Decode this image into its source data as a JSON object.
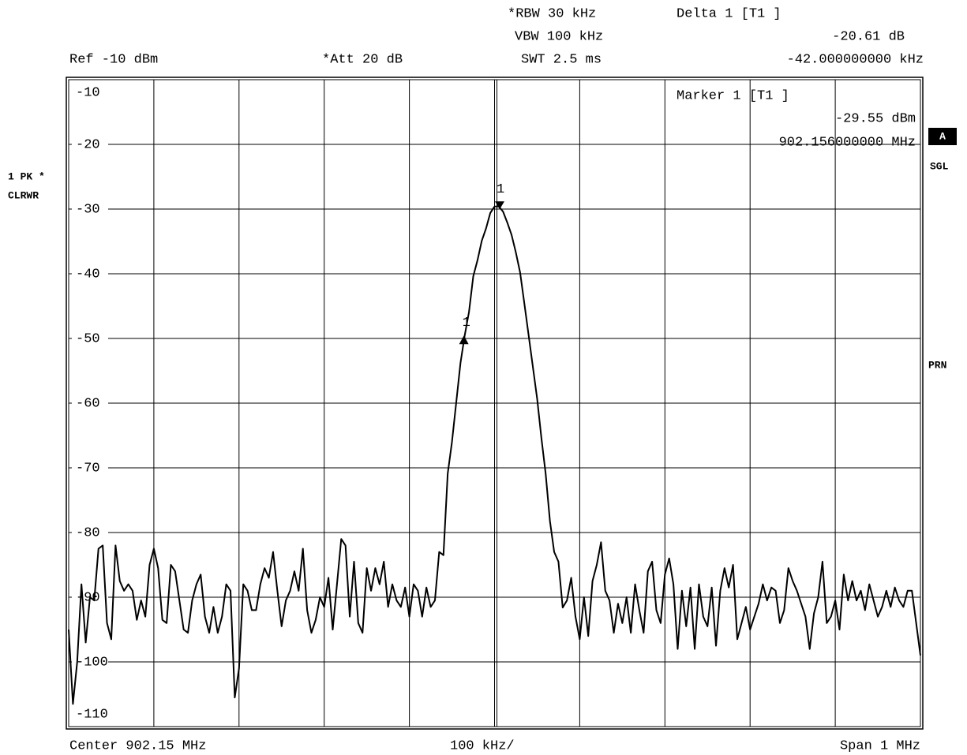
{
  "chart_data": {
    "type": "line",
    "annotations": {
      "rbw": "*RBW 30 kHz",
      "vbw": "VBW 100 kHz",
      "swt": "SWT 2.5 ms",
      "delta": "Delta 1 [T1 ]",
      "delta_level": "-20.61 dB",
      "delta_freq": "-42.000000000 kHz",
      "ref": "Ref -10 dBm",
      "att": "*Att 20 dB",
      "marker": "Marker 1 [T1 ]",
      "marker_level": "-29.55 dBm",
      "marker_freq": "902.156000000 MHz",
      "trace": "1 PK *",
      "trace_mode": "CLRWR",
      "side_a": "A",
      "side_sgl": "SGL",
      "side_prn": "PRN",
      "center": "Center 902.15 MHz",
      "div": "100 kHz/",
      "span": "Span 1 MHz"
    },
    "xlim": [
      901.65,
      902.65
    ],
    "xticks": [
      901.65,
      901.75,
      901.85,
      901.95,
      902.05,
      902.15,
      902.25,
      902.35,
      902.45,
      902.55,
      902.65
    ],
    "ylim": [
      -110,
      -10
    ],
    "yticks": [
      -10,
      -20,
      -30,
      -40,
      -50,
      -60,
      -70,
      -80,
      -90,
      -100,
      -110
    ],
    "grid": true,
    "markers": [
      {
        "label": "1",
        "x": 902.156,
        "y": -29.55,
        "shape": "down"
      },
      {
        "label": "1",
        "x": 902.114,
        "y": -50.16,
        "shape": "up"
      }
    ],
    "x": [
      901.65,
      901.655,
      901.66,
      901.665,
      901.67,
      901.675,
      901.68,
      901.685,
      901.69,
      901.695,
      901.7,
      901.705,
      901.71,
      901.715,
      901.72,
      901.725,
      901.73,
      901.735,
      901.74,
      901.745,
      901.75,
      901.755,
      901.76,
      901.765,
      901.77,
      901.775,
      901.78,
      901.785,
      901.79,
      901.795,
      901.8,
      901.805,
      901.81,
      901.815,
      901.82,
      901.825,
      901.83,
      901.835,
      901.84,
      901.845,
      901.85,
      901.855,
      901.86,
      901.865,
      901.87,
      901.875,
      901.88,
      901.885,
      901.89,
      901.895,
      901.9,
      901.905,
      901.91,
      901.915,
      901.92,
      901.925,
      901.93,
      901.935,
      901.94,
      901.945,
      901.95,
      901.955,
      901.96,
      901.965,
      901.97,
      901.975,
      901.98,
      901.985,
      901.99,
      901.995,
      902,
      902.005,
      902.01,
      902.015,
      902.02,
      902.025,
      902.03,
      902.035,
      902.04,
      902.045,
      902.05,
      902.055,
      902.06,
      902.065,
      902.07,
      902.075,
      902.08,
      902.085,
      902.09,
      902.095,
      902.1,
      902.105,
      902.11,
      902.115,
      902.12,
      902.125,
      902.13,
      902.135,
      902.14,
      902.145,
      902.15,
      902.155,
      902.16,
      902.165,
      902.17,
      902.175,
      902.18,
      902.185,
      902.19,
      902.195,
      902.2,
      902.205,
      902.21,
      902.215,
      902.22,
      902.225,
      902.23,
      902.235,
      902.24,
      902.245,
      902.25,
      902.255,
      902.26,
      902.265,
      902.27,
      902.275,
      902.28,
      902.285,
      902.29,
      902.295,
      902.3,
      902.305,
      902.31,
      902.315,
      902.32,
      902.325,
      902.33,
      902.335,
      902.34,
      902.345,
      902.35,
      902.355,
      902.36,
      902.365,
      902.37,
      902.375,
      902.38,
      902.385,
      902.39,
      902.395,
      902.4,
      902.405,
      902.41,
      902.415,
      902.42,
      902.425,
      902.43,
      902.435,
      902.44,
      902.445,
      902.45,
      902.455,
      902.46,
      902.465,
      902.47,
      902.475,
      902.48,
      902.485,
      902.49,
      902.495,
      902.5,
      902.505,
      902.51,
      902.515,
      902.52,
      902.525,
      902.53,
      902.535,
      902.54,
      902.545,
      902.55,
      902.555,
      902.56,
      902.565,
      902.57,
      902.575,
      902.58,
      902.585,
      902.59,
      902.595,
      902.6,
      902.605,
      902.61,
      902.615,
      902.62,
      902.625,
      902.63,
      902.635,
      902.64,
      902.645,
      902.65
    ],
    "series": [
      {
        "color": "#000000",
        "values": [
          -95,
          -106.5,
          -100,
          -88,
          -97,
          -90,
          -90.5,
          -82.5,
          -82,
          -94,
          -96.5,
          -82,
          -87.5,
          -89,
          -88,
          -89,
          -93.5,
          -90.5,
          -93,
          -85,
          -82.5,
          -85.5,
          -93.5,
          -94,
          -85,
          -86,
          -90.5,
          -95,
          -95.5,
          -90.5,
          -88,
          -86.5,
          -93,
          -95.5,
          -91.5,
          -95.5,
          -93,
          -88,
          -89,
          -105.5,
          -101,
          -88,
          -89,
          -92,
          -92,
          -88,
          -85.5,
          -87,
          -83,
          -89,
          -94.5,
          -90.5,
          -89,
          -86,
          -89,
          -82.5,
          -92,
          -95.5,
          -93.5,
          -90,
          -91.5,
          -87,
          -95,
          -88,
          -81,
          -82,
          -93,
          -84.5,
          -94,
          -95.5,
          -85.5,
          -89,
          -85.5,
          -88,
          -84.5,
          -91.5,
          -88,
          -90.5,
          -91.5,
          -88.5,
          -93,
          -88,
          -89,
          -93,
          -88.5,
          -91.5,
          -90.5,
          -83,
          -83.5,
          -70.9,
          -66,
          -59.9,
          -53.8,
          -49.5,
          -45.9,
          -40.4,
          -37.9,
          -34.9,
          -33,
          -30.6,
          -29.6,
          -29.6,
          -30.4,
          -32.1,
          -34,
          -36.7,
          -39.8,
          -44.6,
          -49.5,
          -54.4,
          -59.3,
          -65.4,
          -70.9,
          -78.2,
          -83,
          -84.5,
          -91.6,
          -90.5,
          -87,
          -93,
          -96.5,
          -90,
          -96,
          -87.5,
          -85,
          -81.5,
          -89,
          -90.5,
          -95.5,
          -91,
          -94,
          -90,
          -95.5,
          -88,
          -92,
          -95.5,
          -86,
          -84.5,
          -92,
          -94,
          -86.5,
          -84,
          -88,
          -98,
          -89,
          -94.5,
          -88.5,
          -98,
          -88,
          -93,
          -94.5,
          -88.5,
          -97.5,
          -89,
          -85.5,
          -88.5,
          -85,
          -96.5,
          -94,
          -91.5,
          -95,
          -93,
          -91,
          -88,
          -90.5,
          -88.5,
          -89,
          -94,
          -92,
          -85.5,
          -87.5,
          -89,
          -91,
          -93,
          -98,
          -92.5,
          -90,
          -84.5,
          -94,
          -93,
          -90.5,
          -95,
          -86.5,
          -90.5,
          -87.5,
          -90.5,
          -89,
          -92,
          -88,
          -90.5,
          -93,
          -91.5,
          -89,
          -91.5,
          -88.5,
          -90.5,
          -91.5,
          -89,
          -89,
          -94,
          -99
        ]
      }
    ]
  }
}
